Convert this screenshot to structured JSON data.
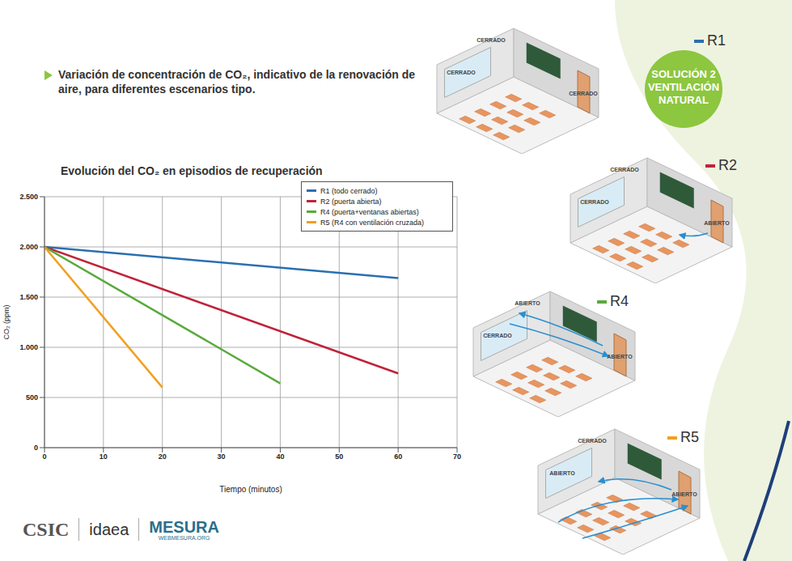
{
  "header": {
    "text": "Variación de concentración de CO₂, indicativo de la renovación de aire, para diferentes escenarios tipo."
  },
  "badge": {
    "lines": [
      "SOLUCIÓN 2",
      "VENTILACIÓN",
      "NATURAL"
    ]
  },
  "scenarios": [
    {
      "name": "R1",
      "labels": [
        "CERRADO",
        "CERRADO",
        "CERRADO"
      ]
    },
    {
      "name": "R2",
      "labels": [
        "CERRADO",
        "CERRADO",
        "ABIERTO"
      ]
    },
    {
      "name": "R4",
      "labels": [
        "CERRADO",
        "ABIERTO",
        "ABIERTO"
      ]
    },
    {
      "name": "R5",
      "labels": [
        "ABIERTO",
        "CERRADO",
        "ABIERTO"
      ]
    }
  ],
  "logos": [
    "CSIC",
    "idaea",
    "MESURA",
    "WEBMESURA.ORG"
  ],
  "chart_data": {
    "type": "line",
    "title": "Evolución del CO₂ en episodios de recuperación",
    "x_label": "Tiempo (minutos)",
    "y_label": "CO₂ (ppm)",
    "xlim": [
      0,
      70
    ],
    "xticks": [
      0,
      10,
      20,
      30,
      40,
      50,
      60,
      70
    ],
    "ylim": [
      0,
      2500
    ],
    "yticks": [
      0,
      500,
      {
        "value": 1000,
        "label": "1.000"
      },
      {
        "value": 1500,
        "label": "1.500"
      },
      {
        "value": 2000,
        "label": "2.000"
      },
      {
        "value": 2500,
        "label": "2.500"
      }
    ],
    "grid": true,
    "legend": "upper right",
    "series": [
      {
        "name": "R1 (todo cerrado)",
        "color": "#2a6fb0",
        "x": [
          0,
          60
        ],
        "values": [
          2000,
          1690
        ]
      },
      {
        "name": "R2 (puerta abierta)",
        "color": "#c0223a",
        "x": [
          0,
          60
        ],
        "values": [
          2000,
          740
        ]
      },
      {
        "name": "R4 (puerta+ventanas abiertas)",
        "color": "#5aaa3c",
        "x": [
          0,
          40
        ],
        "values": [
          2000,
          640
        ]
      },
      {
        "name": "R5 (R4 con ventilación cruzada)",
        "color": "#f0a020",
        "x": [
          0,
          20
        ],
        "values": [
          2000,
          600
        ]
      }
    ]
  }
}
